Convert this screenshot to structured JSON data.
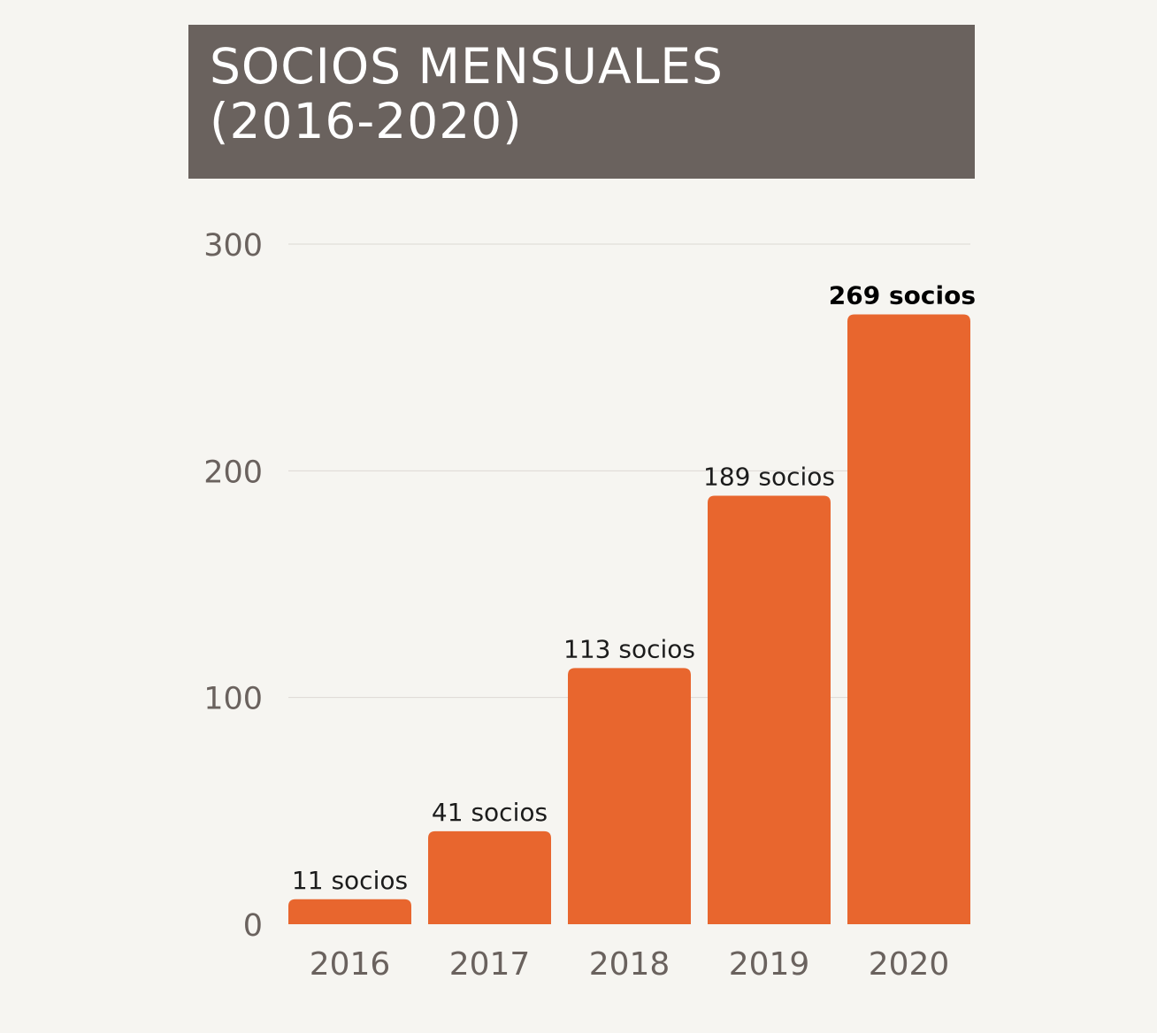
{
  "title": {
    "line1": "SOCIOS MENSUALES",
    "line2": "(2016-2020)"
  },
  "colors": {
    "bar": "#e8662e",
    "title_bg": "#6a625e",
    "background": "#f6f5f1",
    "gridline": "#dcd9d4",
    "axis_text": "#6a625e"
  },
  "chart_data": {
    "type": "bar",
    "title": "SOCIOS MENSUALES (2016-2020)",
    "categories": [
      "2016",
      "2017",
      "2018",
      "2019",
      "2020"
    ],
    "values": [
      11,
      41,
      113,
      189,
      269
    ],
    "data_labels": [
      "11 socios",
      "41 socios",
      "113 socios",
      "189 socios",
      "269 socios"
    ],
    "highlight_index": 4,
    "yticks": [
      0,
      100,
      200,
      300
    ],
    "ylim": [
      0,
      300
    ],
    "xlabel": "",
    "ylabel": "",
    "grid": true,
    "legend": "none"
  }
}
